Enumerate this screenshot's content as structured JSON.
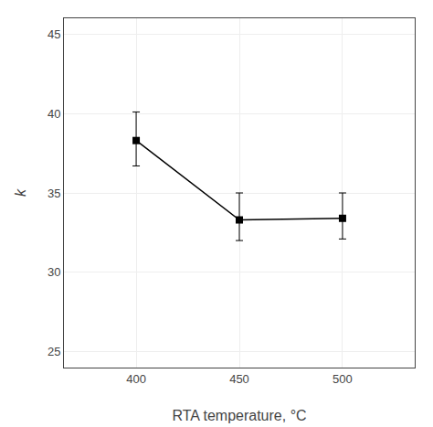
{
  "chart_data": {
    "type": "line",
    "x": [
      400,
      450,
      500
    ],
    "values": [
      38.3,
      33.3,
      33.4
    ],
    "error_upper": [
      1.8,
      1.7,
      1.6
    ],
    "error_lower": [
      1.6,
      1.3,
      1.3
    ],
    "color": "#000000",
    "marker": "square",
    "line_style": "solid",
    "xlabel": "RTA temperature, °C",
    "ylabel": "k",
    "xlim": [
      365,
      535
    ],
    "ylim": [
      24,
      46
    ],
    "xticks": [
      400,
      450,
      500
    ],
    "yticks": [
      25,
      30,
      35,
      40,
      45
    ],
    "grid": true
  }
}
